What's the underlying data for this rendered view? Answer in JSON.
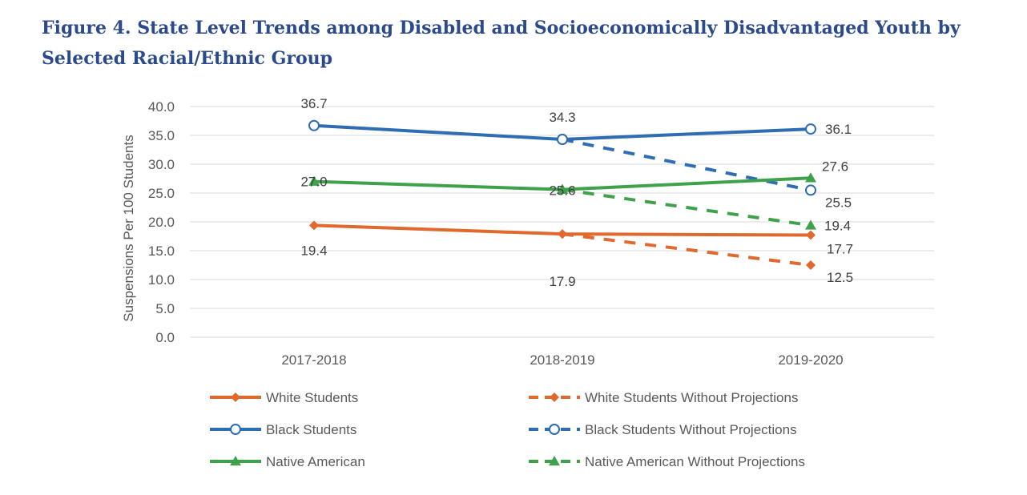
{
  "chart_data": {
    "type": "line",
    "title": "Figure 4. State Level Trends among Disabled and Socioeconomically Disadvantaged Youth by Selected Racial/Ethnic Group",
    "xlabel": "",
    "ylabel": "Suspensions Per 100 Students",
    "categories": [
      "2017-2018",
      "2018-2019",
      "2019-2020"
    ],
    "ylim": [
      0,
      40
    ],
    "yticks": [
      0,
      5,
      10,
      15,
      20,
      25,
      30,
      35,
      40
    ],
    "ytick_labels": [
      "0.0",
      "5.0",
      "10.0",
      "15.0",
      "20.0",
      "25.0",
      "30.0",
      "35.0",
      "40.0"
    ],
    "grid": true,
    "legend_position": "bottom",
    "series": [
      {
        "name": "White Students",
        "values": [
          19.4,
          17.9,
          17.7
        ],
        "labels": [
          "19.4",
          "17.9",
          "17.7"
        ],
        "color": "#e0692e",
        "dashed": false,
        "marker": "diamond"
      },
      {
        "name": "White Students Without Projections",
        "values": [
          null,
          17.9,
          12.5
        ],
        "labels": [
          "",
          "",
          "12.5"
        ],
        "color": "#e0692e",
        "dashed": true,
        "marker": "diamond"
      },
      {
        "name": "Black Students",
        "values": [
          36.7,
          34.3,
          36.1
        ],
        "labels": [
          "36.7",
          "34.3",
          "36.1"
        ],
        "color": "#2e6db3",
        "dashed": false,
        "marker": "circle"
      },
      {
        "name": "Black Students Without Projections",
        "values": [
          null,
          34.3,
          25.5
        ],
        "labels": [
          "",
          "",
          "25.5"
        ],
        "color": "#2e6db3",
        "dashed": true,
        "marker": "circle"
      },
      {
        "name": "Native American",
        "values": [
          27.0,
          25.6,
          27.6
        ],
        "labels": [
          "27.0",
          "25.6",
          "27.6"
        ],
        "color": "#3fa24a",
        "dashed": false,
        "marker": "triangle"
      },
      {
        "name": "Native American Without Projections",
        "values": [
          null,
          25.6,
          19.4
        ],
        "labels": [
          "",
          "",
          "19.4"
        ],
        "color": "#3fa24a",
        "dashed": true,
        "marker": "triangle"
      }
    ]
  }
}
